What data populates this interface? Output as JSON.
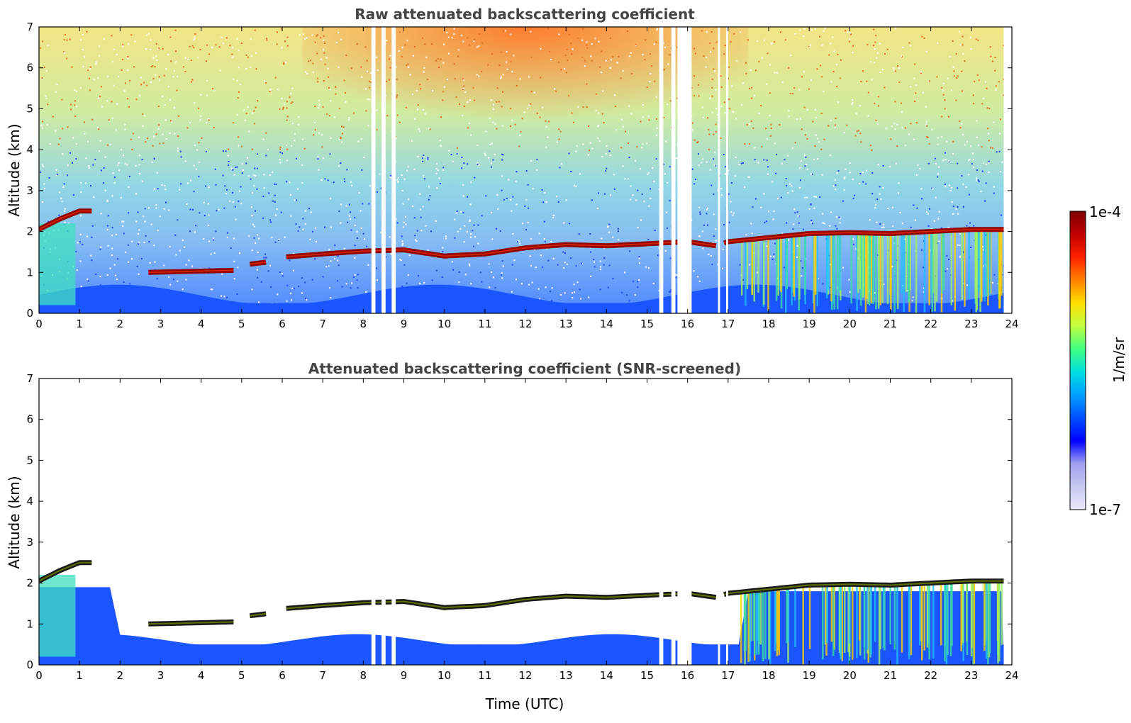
{
  "chart_data": [
    {
      "type": "heatmap",
      "title": "Raw attenuated backscattering coefficient",
      "xlabel": "",
      "ylabel": "Altitude (km)",
      "xlim": [
        0,
        24
      ],
      "ylim": [
        0,
        7
      ],
      "xticks": [
        0,
        1,
        2,
        3,
        4,
        5,
        6,
        7,
        8,
        9,
        10,
        11,
        12,
        13,
        14,
        15,
        16,
        17,
        18,
        19,
        20,
        21,
        22,
        23,
        24
      ],
      "yticks": [
        0,
        1,
        2,
        3,
        4,
        5,
        6,
        7
      ],
      "layer_height_km": [
        {
          "time": 0.0,
          "alt": 2.05
        },
        {
          "time": 0.5,
          "alt": 2.3
        },
        {
          "time": 1.0,
          "alt": 2.5
        },
        {
          "time": 1.3,
          "alt": 2.5
        },
        {
          "time": 2.7,
          "alt": 1.0
        },
        {
          "time": 4.8,
          "alt": 1.05
        },
        {
          "time": 5.2,
          "alt": 1.2
        },
        {
          "time": 5.6,
          "alt": 1.25
        },
        {
          "time": 6.1,
          "alt": 1.38
        },
        {
          "time": 7.0,
          "alt": 1.45
        },
        {
          "time": 8.0,
          "alt": 1.52
        },
        {
          "time": 9.0,
          "alt": 1.55
        },
        {
          "time": 10.0,
          "alt": 1.4
        },
        {
          "time": 11.0,
          "alt": 1.45
        },
        {
          "time": 12.0,
          "alt": 1.6
        },
        {
          "time": 13.0,
          "alt": 1.68
        },
        {
          "time": 14.0,
          "alt": 1.65
        },
        {
          "time": 15.0,
          "alt": 1.7
        },
        {
          "time": 16.0,
          "alt": 1.75
        },
        {
          "time": 16.7,
          "alt": 1.65
        },
        {
          "time": 17.0,
          "alt": 1.75
        },
        {
          "time": 18.0,
          "alt": 1.85
        },
        {
          "time": 19.0,
          "alt": 1.95
        },
        {
          "time": 20.0,
          "alt": 1.97
        },
        {
          "time": 21.0,
          "alt": 1.95
        },
        {
          "time": 22.0,
          "alt": 2.0
        },
        {
          "time": 23.0,
          "alt": 2.05
        },
        {
          "time": 23.8,
          "alt": 2.05
        }
      ],
      "data_gaps_utc": [
        [
          8.2,
          8.3
        ],
        [
          8.45,
          8.55
        ],
        [
          8.7,
          8.8
        ],
        [
          15.3,
          15.4
        ],
        [
          15.6,
          15.7
        ],
        [
          15.75,
          16.1
        ],
        [
          16.75,
          16.8
        ],
        [
          16.95,
          17.0
        ]
      ],
      "data_end_utc": 23.8
    },
    {
      "type": "heatmap",
      "title": "Attenuated backscattering coefficient (SNR-screened)",
      "xlabel": "Time (UTC)",
      "ylabel": "Altitude (km)",
      "xlim": [
        0,
        24
      ],
      "ylim": [
        0,
        7
      ],
      "xticks": [
        0,
        1,
        2,
        3,
        4,
        5,
        6,
        7,
        8,
        9,
        10,
        11,
        12,
        13,
        14,
        15,
        16,
        17,
        18,
        19,
        20,
        21,
        22,
        23,
        24
      ],
      "yticks": [
        0,
        1,
        2,
        3,
        4,
        5,
        6,
        7
      ],
      "layer_height_km": [
        {
          "time": 0.0,
          "alt": 2.05
        },
        {
          "time": 0.5,
          "alt": 2.3
        },
        {
          "time": 1.0,
          "alt": 2.5
        },
        {
          "time": 1.3,
          "alt": 2.5
        },
        {
          "time": 2.7,
          "alt": 1.0
        },
        {
          "time": 4.8,
          "alt": 1.05
        },
        {
          "time": 5.2,
          "alt": 1.2
        },
        {
          "time": 5.6,
          "alt": 1.25
        },
        {
          "time": 6.1,
          "alt": 1.38
        },
        {
          "time": 7.0,
          "alt": 1.45
        },
        {
          "time": 8.0,
          "alt": 1.52
        },
        {
          "time": 9.0,
          "alt": 1.55
        },
        {
          "time": 10.0,
          "alt": 1.4
        },
        {
          "time": 11.0,
          "alt": 1.45
        },
        {
          "time": 12.0,
          "alt": 1.6
        },
        {
          "time": 13.0,
          "alt": 1.68
        },
        {
          "time": 14.0,
          "alt": 1.65
        },
        {
          "time": 15.0,
          "alt": 1.7
        },
        {
          "time": 16.0,
          "alt": 1.75
        },
        {
          "time": 16.7,
          "alt": 1.65
        },
        {
          "time": 17.0,
          "alt": 1.75
        },
        {
          "time": 18.0,
          "alt": 1.85
        },
        {
          "time": 19.0,
          "alt": 1.95
        },
        {
          "time": 20.0,
          "alt": 1.97
        },
        {
          "time": 21.0,
          "alt": 1.95
        },
        {
          "time": 22.0,
          "alt": 2.0
        },
        {
          "time": 23.0,
          "alt": 2.05
        },
        {
          "time": 23.8,
          "alt": 2.05
        }
      ],
      "data_gaps_utc": [
        [
          8.2,
          8.3
        ],
        [
          8.45,
          8.55
        ],
        [
          8.7,
          8.8
        ],
        [
          15.3,
          15.4
        ],
        [
          15.6,
          15.7
        ],
        [
          15.75,
          16.1
        ],
        [
          16.75,
          16.8
        ],
        [
          16.95,
          17.0
        ]
      ],
      "data_end_utc": 23.8
    }
  ],
  "colorbar": {
    "label": "1/m/sr",
    "max_label": "1e-4",
    "min_label": "1e-7",
    "scale": "log",
    "colormap": "jet",
    "colors": [
      "#e8e8f8",
      "#c8c8f0",
      "#a0a0f0",
      "#0000ff",
      "#0050ff",
      "#00a0ff",
      "#00e0e0",
      "#40ff80",
      "#c0ff40",
      "#ffe000",
      "#ff8000",
      "#ff2000",
      "#c00000",
      "#800000"
    ]
  }
}
